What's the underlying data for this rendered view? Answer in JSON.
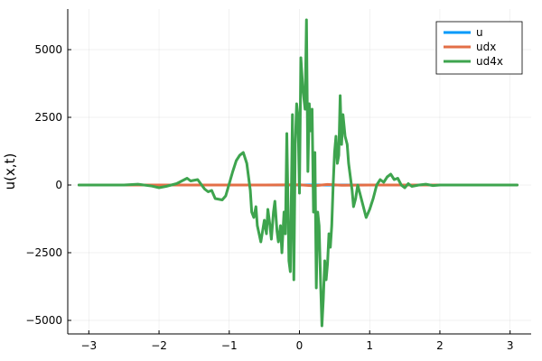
{
  "chart_data": {
    "type": "line",
    "title": "",
    "xlabel": "",
    "ylabel": "u(x,t)",
    "xlim": [
      -3.3,
      3.3
    ],
    "ylim": [
      -5500,
      6500
    ],
    "xticks": [
      -3,
      -2,
      -1,
      0,
      1,
      2,
      3
    ],
    "yticks": [
      -5000,
      -2500,
      0,
      2500,
      5000
    ],
    "xtick_labels": [
      "−3",
      "−2",
      "−1",
      "0",
      "1",
      "2",
      "3"
    ],
    "ytick_labels": [
      "−5000",
      "−2500",
      "0",
      "2500",
      "5000"
    ],
    "grid": true,
    "legend_position": "top-right",
    "series": [
      {
        "name": "u",
        "color": "#009AFA",
        "x": [
          -3.14,
          -2.5,
          -2.0,
          -1.5,
          -1.0,
          -0.5,
          0.0,
          0.5,
          1.0,
          1.5,
          2.0,
          2.5,
          3.1
        ],
        "y": [
          0,
          0,
          0,
          0,
          0,
          0,
          0,
          0,
          0,
          0,
          0,
          0,
          0
        ]
      },
      {
        "name": "udx",
        "color": "#E36F47",
        "x": [
          -3.14,
          -2.5,
          -2.0,
          -1.5,
          -1.0,
          -0.5,
          0.0,
          0.2,
          0.4,
          0.6,
          1.0,
          1.5,
          2.0,
          2.5,
          3.1
        ],
        "y": [
          0,
          0,
          0,
          0,
          0,
          0,
          10,
          -30,
          20,
          -10,
          0,
          0,
          0,
          0,
          0
        ]
      },
      {
        "name": "ud4x",
        "color": "#3EA44E",
        "x": [
          -3.14,
          -2.8,
          -2.5,
          -2.3,
          -2.1,
          -2.0,
          -1.9,
          -1.75,
          -1.6,
          -1.55,
          -1.45,
          -1.35,
          -1.3,
          -1.25,
          -1.2,
          -1.1,
          -1.05,
          -1.0,
          -0.95,
          -0.9,
          -0.85,
          -0.8,
          -0.75,
          -0.7,
          -0.68,
          -0.65,
          -0.62,
          -0.6,
          -0.55,
          -0.5,
          -0.47,
          -0.45,
          -0.42,
          -0.4,
          -0.37,
          -0.35,
          -0.32,
          -0.3,
          -0.27,
          -0.25,
          -0.22,
          -0.2,
          -0.18,
          -0.15,
          -0.13,
          -0.1,
          -0.08,
          -0.06,
          -0.04,
          -0.02,
          0.0,
          0.02,
          0.05,
          0.08,
          0.1,
          0.12,
          0.14,
          0.16,
          0.18,
          0.2,
          0.22,
          0.24,
          0.26,
          0.28,
          0.3,
          0.32,
          0.34,
          0.36,
          0.38,
          0.4,
          0.42,
          0.44,
          0.46,
          0.48,
          0.5,
          0.52,
          0.54,
          0.56,
          0.58,
          0.6,
          0.62,
          0.65,
          0.68,
          0.7,
          0.72,
          0.75,
          0.77,
          0.8,
          0.83,
          0.86,
          0.9,
          0.95,
          1.0,
          1.05,
          1.1,
          1.15,
          1.2,
          1.25,
          1.3,
          1.35,
          1.4,
          1.45,
          1.5,
          1.55,
          1.6,
          1.7,
          1.8,
          1.9,
          2.0,
          2.1,
          2.2,
          2.4,
          2.6,
          2.8,
          3.1
        ],
        "y": [
          0,
          0,
          0,
          30,
          -40,
          -100,
          -50,
          50,
          250,
          150,
          200,
          -150,
          -250,
          -200,
          -500,
          -550,
          -400,
          50,
          500,
          900,
          1100,
          1200,
          800,
          -200,
          -1000,
          -1200,
          -800,
          -1500,
          -2100,
          -1300,
          -1800,
          -900,
          -1500,
          -2000,
          -1000,
          -600,
          -1700,
          -2100,
          -1500,
          -2500,
          -1000,
          -1800,
          1900,
          -2800,
          -3200,
          2600,
          -3500,
          1500,
          3000,
          2500,
          -300,
          4700,
          3500,
          2800,
          6100,
          500,
          3000,
          2000,
          2800,
          -1000,
          1200,
          -3800,
          -1000,
          -1500,
          -3500,
          -5200,
          -4200,
          -2800,
          -3500,
          -2900,
          -1800,
          -2300,
          -1500,
          0,
          1200,
          1800,
          800,
          1100,
          3300,
          1500,
          2600,
          1800,
          1500,
          800,
          400,
          -200,
          -800,
          -500,
          0,
          -300,
          -700,
          -1200,
          -900,
          -500,
          0,
          200,
          100,
          300,
          400,
          200,
          250,
          0,
          -100,
          50,
          -50,
          0,
          30,
          -20,
          0,
          0,
          0,
          0,
          0,
          0,
          0
        ]
      }
    ]
  }
}
